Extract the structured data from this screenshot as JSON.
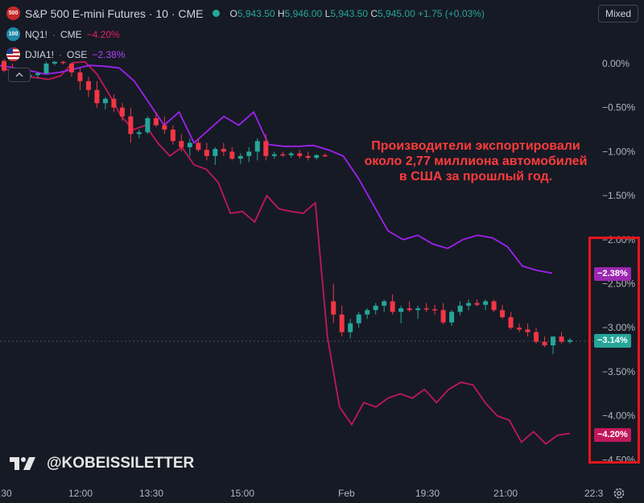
{
  "legend": {
    "main": {
      "badge": "500",
      "title": "S&P 500 E-mini Futures · 10 · CME",
      "o_label": "O",
      "o_value": "5,943.50",
      "h_label": "H",
      "h_value": "5,946.00",
      "l_label": "L",
      "l_value": "5,943.50",
      "c_label": "C",
      "c_value": "5,945.00",
      "change": "+1.75 (+0.03%)"
    },
    "nq": {
      "badge": "100",
      "symbol": "NQ1!",
      "exchange": "CME",
      "change": "−4.20%"
    },
    "dj": {
      "symbol": "DJIA1!",
      "exchange": "OSE",
      "change": "−2.38%"
    }
  },
  "toolbar": {
    "mixed_label": "Mixed"
  },
  "annotation": "Производители экспортировали около 2,77 миллиона автомобилей в США за прошлый год.",
  "watermark": {
    "handle": "@KOBEISSILETTER",
    "logo": "tradingview-logo-icon"
  },
  "price_tags": {
    "dj": "−2.38%",
    "es": "−3.14%",
    "nq": "−4.20%"
  },
  "colors": {
    "background": "#161a25",
    "up": "#26a69a",
    "down": "#f23645",
    "nq_line": "#c2185b",
    "dj_line": "#a020f0",
    "annotation": "#ff3b3b",
    "highlight_box": "#e8141b"
  },
  "chart_data": {
    "type": "line",
    "title": "S&P 500 E-mini Futures · 10 · CME",
    "x_ticks": [
      ":30",
      "12:00",
      "13:30",
      "15:00",
      "Feb",
      "19:30",
      "21:00",
      "22:3"
    ],
    "y_ticks": [
      "0.00%",
      "−0.50%",
      "−1.00%",
      "−1.50%",
      "−2.00%",
      "−2.50%",
      "−3.00%",
      "−3.50%",
      "−4.00%",
      "−4.50%"
    ],
    "ylim": [
      -4.6,
      0.5
    ],
    "y_scale": "percent",
    "grid": false,
    "reference_line": -3.14,
    "series": [
      {
        "name": "NQ1!",
        "color": "#c2185b",
        "values": [
          -0.02,
          -0.1,
          -0.15,
          -0.16,
          -0.18,
          -0.14,
          0.01,
          0.02,
          -0.12,
          -0.35,
          -0.6,
          -0.75,
          -0.7,
          -0.9,
          -1.05,
          -0.95,
          -1.15,
          -1.2,
          -1.35,
          -1.7,
          -1.68,
          -1.8,
          -1.5,
          -1.65,
          -1.68,
          -1.7,
          -1.58,
          -3.1,
          -3.9,
          -4.1,
          -3.85,
          -3.9,
          -3.8,
          -3.75,
          -3.8,
          -3.7,
          -3.85,
          -3.7,
          -3.62,
          -3.65,
          -3.85,
          -4.0,
          -4.05,
          -4.3,
          -4.18,
          -4.32,
          -4.22,
          -4.2
        ]
      },
      {
        "name": "DJIA1!",
        "color": "#a020f0",
        "values": [
          -0.02,
          -0.05,
          -0.08,
          -0.12,
          -0.1,
          -0.06,
          -0.02,
          -0.03,
          -0.05,
          -0.2,
          -0.45,
          -0.7,
          -0.55,
          -0.9,
          -0.75,
          -0.6,
          -0.7,
          -0.55,
          -0.92,
          -0.94,
          -0.94,
          -0.93,
          -0.98,
          -1.05,
          -1.3,
          -1.6,
          -1.9,
          -2.0,
          -1.95,
          -2.05,
          -2.1,
          -2.0,
          -1.95,
          -1.98,
          -2.08,
          -2.3,
          -2.35,
          -2.38
        ]
      },
      {
        "name": "S&P 500 E-mini Futures",
        "type": "candlestick",
        "up_color": "#26a69a",
        "down_color": "#f23645",
        "candles": [
          [
            0.03,
            0.05,
            -0.1,
            -0.08
          ],
          [
            -0.08,
            0.0,
            -0.15,
            -0.12
          ],
          [
            -0.12,
            -0.05,
            -0.16,
            -0.15
          ],
          [
            -0.15,
            -0.1,
            -0.18,
            -0.13
          ],
          [
            -0.13,
            -0.1,
            -0.16,
            -0.11
          ],
          [
            -0.11,
            0.02,
            -0.12,
            0.0
          ],
          [
            0.0,
            0.03,
            -0.02,
            0.02
          ],
          [
            0.02,
            0.03,
            -0.01,
            0.01
          ],
          [
            0.0,
            0.01,
            -0.15,
            -0.1
          ],
          [
            -0.1,
            -0.05,
            -0.3,
            -0.2
          ],
          [
            -0.2,
            -0.15,
            -0.38,
            -0.3
          ],
          [
            -0.3,
            -0.2,
            -0.5,
            -0.45
          ],
          [
            -0.45,
            -0.38,
            -0.52,
            -0.4
          ],
          [
            -0.4,
            -0.35,
            -0.55,
            -0.5
          ],
          [
            -0.5,
            -0.45,
            -0.65,
            -0.6
          ],
          [
            -0.6,
            -0.5,
            -0.9,
            -0.8
          ],
          [
            -0.8,
            -0.75,
            -0.85,
            -0.78
          ],
          [
            -0.78,
            -0.6,
            -0.8,
            -0.62
          ],
          [
            -0.62,
            -0.55,
            -0.72,
            -0.7
          ],
          [
            -0.7,
            -0.6,
            -0.8,
            -0.75
          ],
          [
            -0.75,
            -0.7,
            -0.92,
            -0.88
          ],
          [
            -0.88,
            -0.8,
            -1.0,
            -0.95
          ],
          [
            -0.95,
            -0.85,
            -1.05,
            -0.9
          ],
          [
            -0.9,
            -0.85,
            -1.0,
            -0.98
          ],
          [
            -0.98,
            -0.9,
            -1.1,
            -1.05
          ],
          [
            -1.05,
            -0.95,
            -1.15,
            -0.97
          ],
          [
            -0.97,
            -0.9,
            -1.05,
            -1.0
          ],
          [
            -1.0,
            -0.95,
            -1.1,
            -1.08
          ],
          [
            -1.08,
            -1.02,
            -1.14,
            -1.05
          ],
          [
            -1.05,
            -0.95,
            -1.12,
            -1.0
          ],
          [
            -1.0,
            -0.85,
            -1.1,
            -0.88
          ],
          [
            -0.88,
            -0.8,
            -1.1,
            -1.05
          ],
          [
            -1.05,
            -1.0,
            -1.08,
            -1.03
          ],
          [
            -1.03,
            -1.0,
            -1.06,
            -1.04
          ],
          [
            -1.04,
            -1.0,
            -1.07,
            -1.02
          ],
          [
            -1.02,
            -0.98,
            -1.08,
            -1.05
          ],
          [
            -1.05,
            -1.0,
            -1.1,
            -1.07
          ],
          [
            -1.07,
            -1.03,
            -1.09,
            -1.04
          ],
          [
            -1.04,
            -1.02,
            -1.06,
            -1.05
          ],
          [
            -2.7,
            -2.5,
            -2.95,
            -2.85
          ],
          [
            -2.85,
            -2.75,
            -3.1,
            -3.05
          ],
          [
            -3.05,
            -2.9,
            -3.12,
            -2.95
          ],
          [
            -2.95,
            -2.82,
            -3.0,
            -2.85
          ],
          [
            -2.85,
            -2.78,
            -2.9,
            -2.8
          ],
          [
            -2.8,
            -2.72,
            -2.85,
            -2.75
          ],
          [
            -2.75,
            -2.68,
            -2.82,
            -2.7
          ],
          [
            -2.7,
            -2.62,
            -2.85,
            -2.82
          ],
          [
            -2.82,
            -2.75,
            -2.95,
            -2.78
          ],
          [
            -2.78,
            -2.7,
            -2.82,
            -2.8
          ],
          [
            -2.8,
            -2.75,
            -2.9,
            -2.78
          ],
          [
            -2.78,
            -2.72,
            -2.82,
            -2.79
          ],
          [
            -2.79,
            -2.74,
            -2.85,
            -2.8
          ],
          [
            -2.8,
            -2.72,
            -2.96,
            -2.94
          ],
          [
            -2.94,
            -2.8,
            -2.98,
            -2.82
          ],
          [
            -2.82,
            -2.7,
            -2.86,
            -2.75
          ],
          [
            -2.75,
            -2.68,
            -2.8,
            -2.72
          ],
          [
            -2.72,
            -2.68,
            -2.76,
            -2.74
          ],
          [
            -2.74,
            -2.68,
            -2.8,
            -2.7
          ],
          [
            -2.7,
            -2.68,
            -2.82,
            -2.8
          ],
          [
            -2.8,
            -2.74,
            -2.9,
            -2.88
          ],
          [
            -2.88,
            -2.82,
            -3.02,
            -3.0
          ],
          [
            -3.0,
            -2.95,
            -3.05,
            -3.02
          ],
          [
            -3.02,
            -2.95,
            -3.1,
            -3.05
          ],
          [
            -3.05,
            -3.0,
            -3.18,
            -3.16
          ],
          [
            -3.16,
            -3.1,
            -3.22,
            -3.2
          ],
          [
            -3.2,
            -3.12,
            -3.3,
            -3.1
          ],
          [
            -3.1,
            -3.05,
            -3.18,
            -3.16
          ],
          [
            -3.16,
            -3.12,
            -3.18,
            -3.14
          ]
        ]
      }
    ]
  }
}
